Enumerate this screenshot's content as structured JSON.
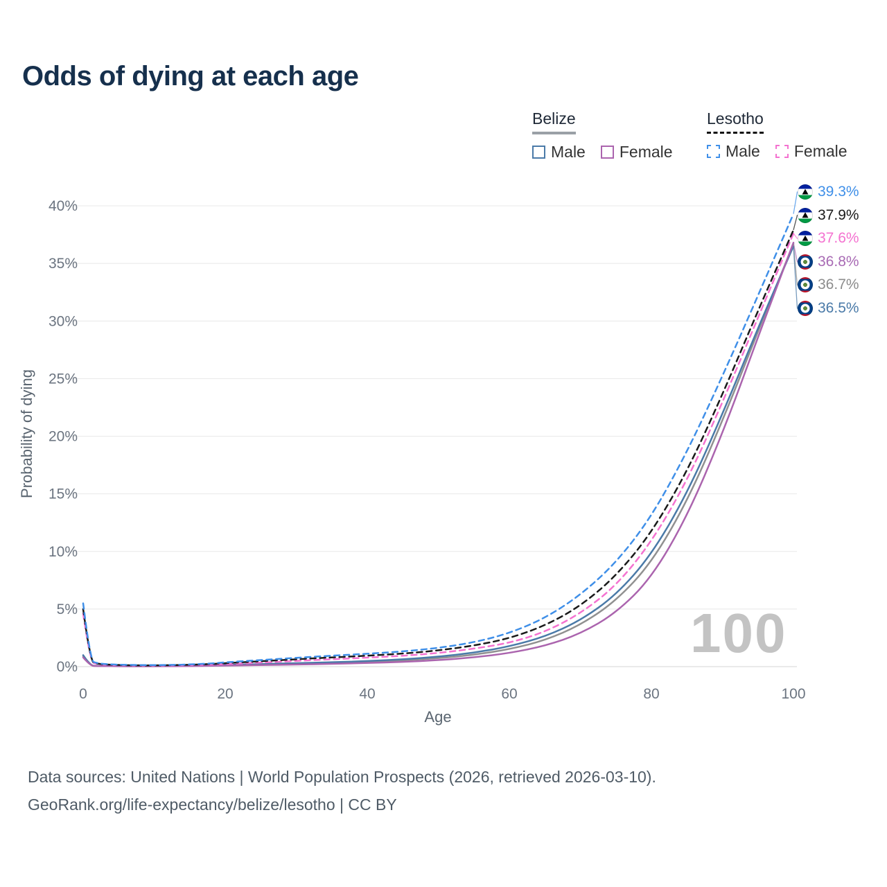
{
  "title": "Odds of dying at each age",
  "legend": {
    "belize": {
      "label": "Belize",
      "male": "Male",
      "female": "Female"
    },
    "lesotho": {
      "label": "Lesotho",
      "male": "Male",
      "female": "Female"
    }
  },
  "axes": {
    "y_label": "Probability of dying",
    "x_label": "Age"
  },
  "watermark": "100",
  "footer": {
    "line1": "Data sources: United Nations | World Population Prospects (2026, retrieved 2026-03-10).",
    "line2": "GeoRank.org/life-expectancy/belize/lesotho | CC BY"
  },
  "chart_data": {
    "type": "line",
    "title": "Odds of dying at each age",
    "xlabel": "Age",
    "ylabel": "Probability of dying",
    "xlim": [
      0,
      100
    ],
    "ylim": [
      0,
      40
    ],
    "y_unit": "%",
    "grid": "horizontal",
    "legend_position": "top-right",
    "y_ticks": [
      {
        "value": 0,
        "label": "0%"
      },
      {
        "value": 5,
        "label": "5%"
      },
      {
        "value": 10,
        "label": "10%"
      },
      {
        "value": 15,
        "label": "15%"
      },
      {
        "value": 20,
        "label": "20%"
      },
      {
        "value": 25,
        "label": "25%"
      },
      {
        "value": 30,
        "label": "30%"
      },
      {
        "value": 35,
        "label": "35%"
      },
      {
        "value": 40,
        "label": "40%"
      }
    ],
    "x_ticks": [
      {
        "value": 0,
        "label": "0"
      },
      {
        "value": 20,
        "label": "20"
      },
      {
        "value": 40,
        "label": "40"
      },
      {
        "value": 60,
        "label": "60"
      },
      {
        "value": 80,
        "label": "80"
      },
      {
        "value": 100,
        "label": "100"
      }
    ],
    "x": [
      0,
      1,
      2,
      3,
      5,
      8,
      10,
      13,
      15,
      18,
      20,
      25,
      30,
      35,
      40,
      45,
      50,
      55,
      60,
      65,
      70,
      75,
      80,
      85,
      90,
      95,
      100
    ],
    "series": [
      {
        "id": "belize-both",
        "name": "Belize — Both sexes",
        "country": "Belize",
        "sex": "Both",
        "color": "#909090",
        "dashed": false,
        "values": [
          0.9,
          0.08,
          0.055,
          0.045,
          0.038,
          0.036,
          0.036,
          0.045,
          0.06,
          0.09,
          0.12,
          0.18,
          0.25,
          0.32,
          0.41,
          0.53,
          0.73,
          1.02,
          1.5,
          2.28,
          3.6,
          5.7,
          9.0,
          14.3,
          21.3,
          29.1,
          36.7
        ],
        "end_value": 36.7
      },
      {
        "id": "belize-male",
        "name": "Belize — Male",
        "country": "Belize",
        "sex": "Male",
        "color": "#4a7aa8",
        "dashed": false,
        "values": [
          1.0,
          0.09,
          0.06,
          0.05,
          0.04,
          0.04,
          0.04,
          0.05,
          0.07,
          0.11,
          0.15,
          0.22,
          0.3,
          0.38,
          0.48,
          0.63,
          0.86,
          1.2,
          1.75,
          2.6,
          4.0,
          6.2,
          9.7,
          15.0,
          21.9,
          29.4,
          36.5
        ],
        "end_value": 36.5
      },
      {
        "id": "belize-female",
        "name": "Belize — Female",
        "country": "Belize",
        "sex": "Female",
        "color": "#ab64ae",
        "dashed": false,
        "values": [
          0.8,
          0.075,
          0.05,
          0.04,
          0.035,
          0.032,
          0.032,
          0.04,
          0.05,
          0.07,
          0.09,
          0.13,
          0.18,
          0.24,
          0.31,
          0.41,
          0.56,
          0.8,
          1.17,
          1.8,
          2.85,
          4.65,
          7.7,
          13.0,
          20.2,
          28.6,
          36.8
        ],
        "end_value": 36.8
      },
      {
        "id": "lesotho-female",
        "name": "Lesotho — Female",
        "country": "Lesotho",
        "sex": "Female",
        "color": "#f472d0",
        "dashed": true,
        "values": [
          4.6,
          0.4,
          0.23,
          0.17,
          0.12,
          0.1,
          0.1,
          0.11,
          0.13,
          0.17,
          0.22,
          0.35,
          0.5,
          0.64,
          0.78,
          0.94,
          1.18,
          1.55,
          2.05,
          3.0,
          4.6,
          7.0,
          10.8,
          16.1,
          22.9,
          30.3,
          37.6
        ],
        "end_value": 37.6
      },
      {
        "id": "lesotho-both",
        "name": "Lesotho — Both sexes",
        "country": "Lesotho",
        "sex": "Both",
        "color": "#1a1a1a",
        "dashed": true,
        "values": [
          5.0,
          0.44,
          0.26,
          0.19,
          0.14,
          0.11,
          0.11,
          0.13,
          0.16,
          0.22,
          0.3,
          0.47,
          0.64,
          0.8,
          0.95,
          1.13,
          1.4,
          1.82,
          2.45,
          3.55,
          5.25,
          7.85,
          11.6,
          16.9,
          23.6,
          30.9,
          37.9
        ],
        "end_value": 37.9
      },
      {
        "id": "lesotho-male",
        "name": "Lesotho — Male",
        "country": "Lesotho",
        "sex": "Male",
        "color": "#3f8fe8",
        "dashed": true,
        "values": [
          5.5,
          0.5,
          0.3,
          0.22,
          0.16,
          0.13,
          0.13,
          0.15,
          0.19,
          0.27,
          0.37,
          0.57,
          0.77,
          0.95,
          1.12,
          1.32,
          1.62,
          2.1,
          2.9,
          4.2,
          6.2,
          9.0,
          13.0,
          18.6,
          25.2,
          32.2,
          39.3
        ],
        "end_value": 39.3
      }
    ],
    "end_labels": [
      {
        "series": "lesotho-male",
        "value": "39.3%",
        "color": "#3f8fe8",
        "flag": "lesotho"
      },
      {
        "series": "lesotho-both",
        "value": "37.9%",
        "color": "#1a1a1a",
        "flag": "lesotho"
      },
      {
        "series": "lesotho-female",
        "value": "37.6%",
        "color": "#f472d0",
        "flag": "lesotho"
      },
      {
        "series": "belize-female",
        "value": "36.8%",
        "color": "#a86ab4",
        "flag": "belize"
      },
      {
        "series": "belize-both",
        "value": "36.7%",
        "color": "#8c8c8c",
        "flag": "belize"
      },
      {
        "series": "belize-male",
        "value": "36.5%",
        "color": "#4a7aa8",
        "flag": "belize"
      }
    ]
  }
}
